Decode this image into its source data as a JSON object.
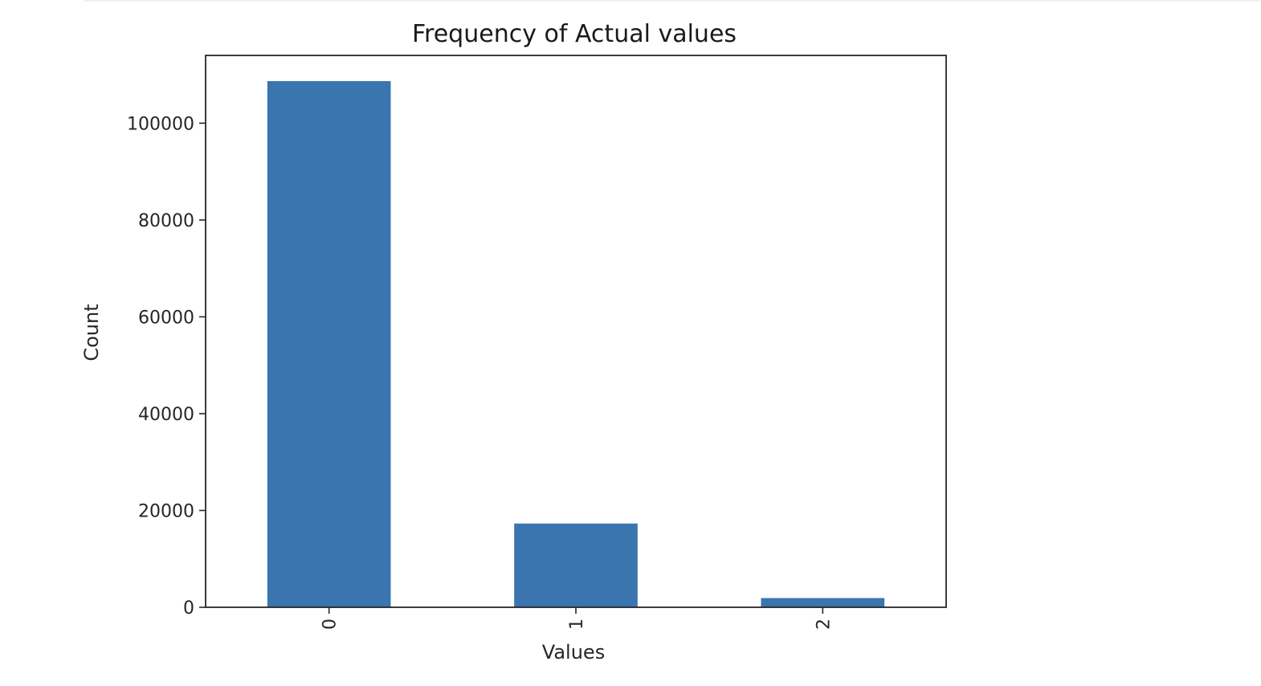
{
  "chart_data": {
    "type": "bar",
    "title": "Frequency of Actual values",
    "xlabel": "Values",
    "ylabel": "Count",
    "categories": [
      "0",
      "1",
      "2"
    ],
    "values": [
      108700,
      17300,
      1900
    ],
    "ylim": [
      0,
      114000
    ],
    "yticks": [
      0,
      20000,
      40000,
      60000,
      80000,
      100000
    ],
    "ytick_labels": [
      "0",
      "20000",
      "40000",
      "60000",
      "80000",
      "100000"
    ],
    "x_tick_rotation": "vertical",
    "grid": false,
    "legend": "none",
    "bar_color": "#3a75af",
    "axis_color": "#262626"
  }
}
